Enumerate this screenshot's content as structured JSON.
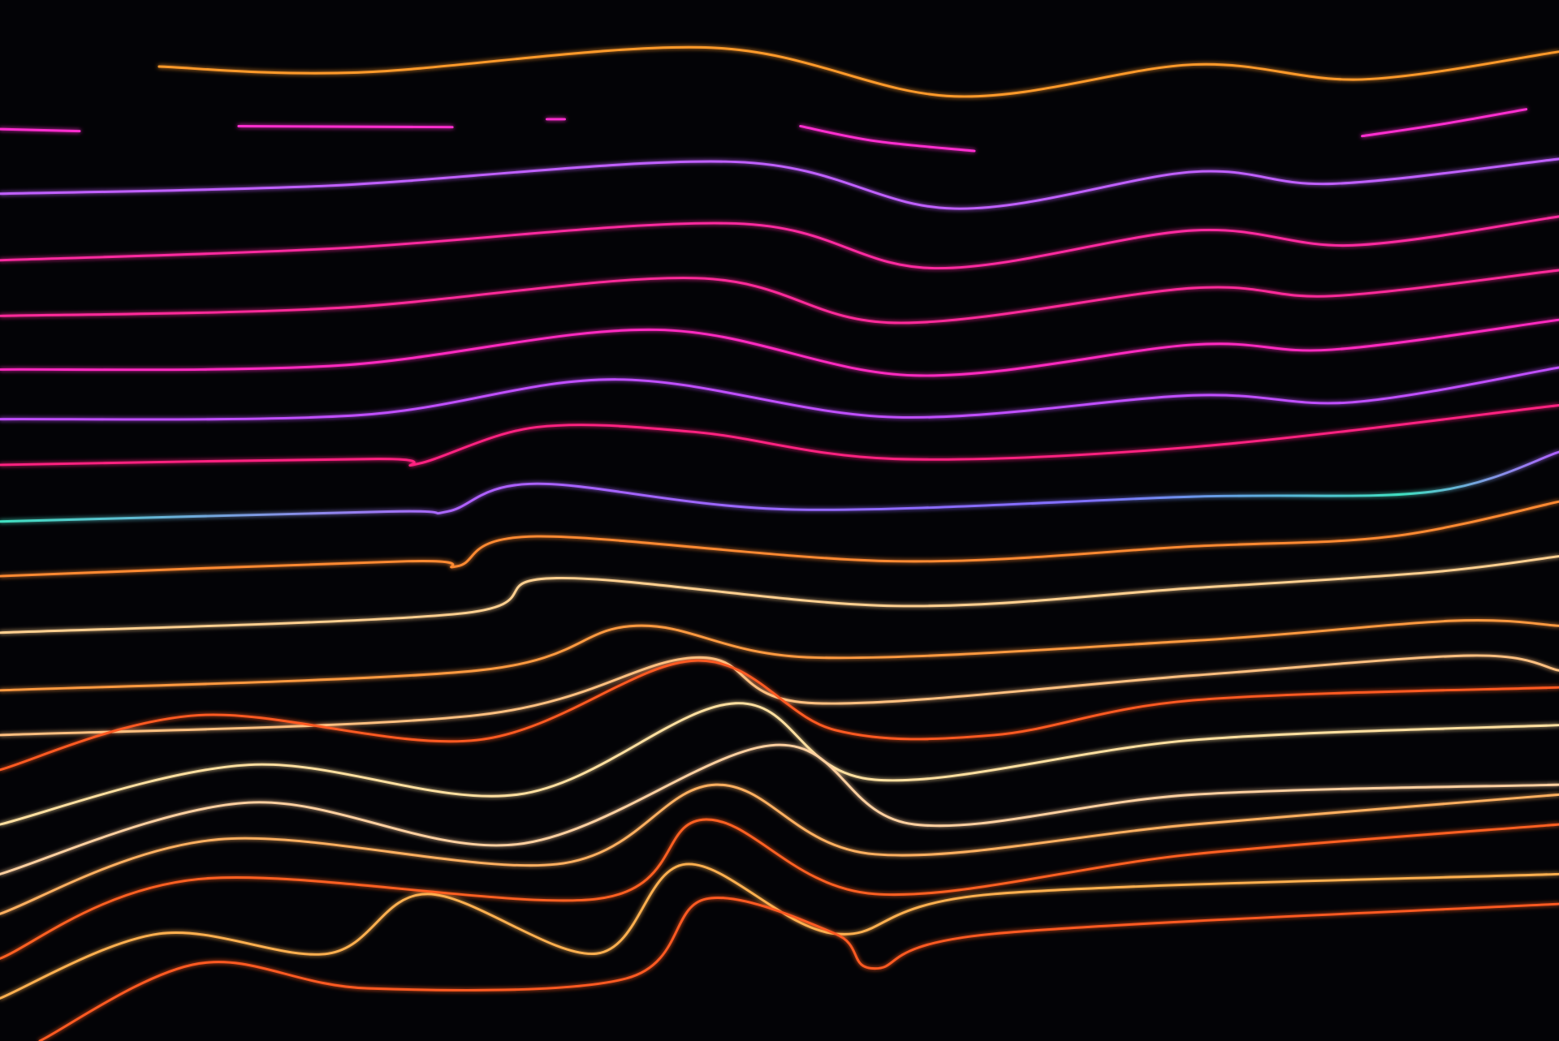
{
  "scene": {
    "subject": "light-trails",
    "background_color": "#030306",
    "trail_colors": [
      "#ff9a2a",
      "#ff2fd0",
      "#c060ff",
      "#ff2aa0",
      "#ff2a9a",
      "#ff2ac0",
      "#c050ff",
      "#ff2080",
      "#40e0c0",
      "#ff8a30",
      "#ffd090",
      "#ff9a40",
      "#ffc080",
      "#ff5a20",
      "#ffe0a0",
      "#ffd0a0",
      "#ffb060",
      "#ff6020",
      "#ffb050",
      "#ff5a20"
    ]
  }
}
